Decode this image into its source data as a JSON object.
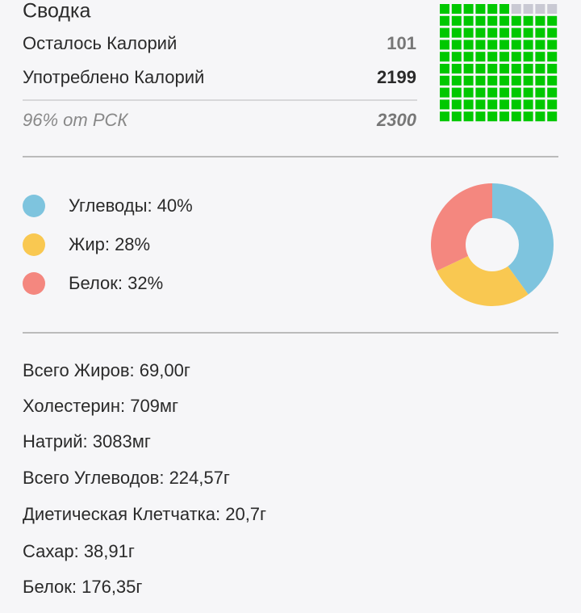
{
  "header": {
    "title": "Сводка"
  },
  "calories": {
    "rows": [
      {
        "label": "Осталось Калорий",
        "value": 101
      },
      {
        "label": "Употреблено Калорий",
        "value": 2199
      },
      {
        "label": "96% от РСК",
        "value": 2300
      }
    ]
  },
  "chart_data": [
    {
      "type": "waffle",
      "values": [
        96
      ],
      "color": "#00c800",
      "empty_color": "#c9c9d3"
    },
    {
      "type": "donut",
      "categories": [
        "Углеводы: 40%",
        "Жир: 28%",
        "Белок: 32%"
      ],
      "values": [
        40,
        28,
        32
      ],
      "colors": [
        "#7ec4de",
        "#f9c851",
        "#f4877f"
      ]
    }
  ],
  "nutrients": [
    "Всего Жиров: 69,00г",
    "Холестерин: 709мг",
    "Натрий: 3083мг",
    "Всего Углеводов: 224,57г",
    "Диетическая Клетчатка: 20,7г",
    "Сахар: 38,91г",
    "Белок: 176,35г"
  ]
}
